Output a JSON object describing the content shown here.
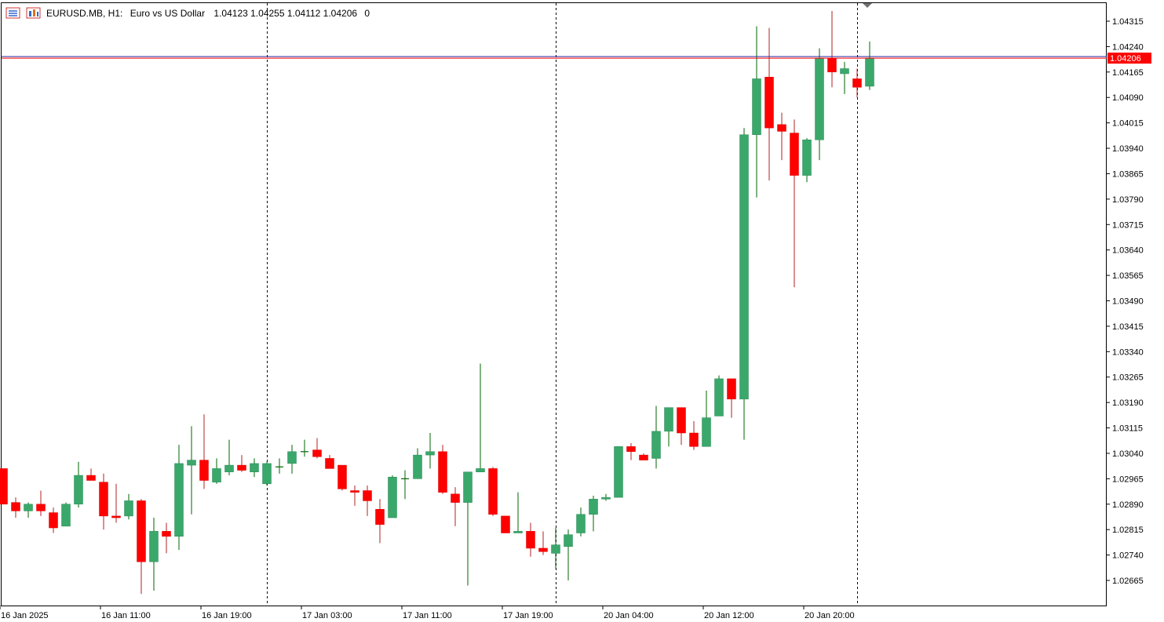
{
  "header": {
    "symbol_timeframe": "EURUSD.MB, H1:",
    "description": "Euro vs US Dollar",
    "ohlc": "1.04123 1.04255 1.04112 1.04206",
    "volume": "0"
  },
  "icons": [
    "chart-window-icon",
    "indicators-icon"
  ],
  "colors": {
    "bull": "#3aa86b",
    "bear": "#ff0000",
    "wick_bull": "#006400",
    "wick_bear": "#b22222",
    "ask_line": "#ff0000",
    "bid_line": "#2a2aa0",
    "price_tag_bg": "#ff0000",
    "separator": "#000000",
    "frame": "#000000"
  },
  "chart_data": {
    "type": "candlestick",
    "symbol": "EURUSD.MB",
    "timeframe": "H1",
    "current_price": 1.04206,
    "price_tag_label": "1.04206",
    "price_axis": {
      "labels": [
        "1.04315",
        "1.04240",
        "1.04165",
        "1.04090",
        "1.04015",
        "1.03940",
        "1.03865",
        "1.03790",
        "1.03715",
        "1.03640",
        "1.03565",
        "1.03490",
        "1.03415",
        "1.03340",
        "1.03265",
        "1.03190",
        "1.03115",
        "1.03040",
        "1.02965",
        "1.02890",
        "1.02815",
        "1.02740",
        "1.02665"
      ]
    },
    "time_axis": {
      "labels": [
        "16 Jan 2025",
        "16 Jan 11:00",
        "16 Jan 19:00",
        "17 Jan 03:00",
        "17 Jan 11:00",
        "17 Jan 19:00",
        "20 Jan 04:00",
        "20 Jan 12:00",
        "20 Jan 20:00"
      ],
      "label_bar_index": [
        0,
        8,
        16,
        24,
        32,
        40,
        48,
        56,
        64
      ]
    },
    "period_separators_bar_index": [
      21,
      44,
      68
    ],
    "candles": [
      {
        "o": 1.02995,
        "h": 1.02995,
        "l": 1.0289,
        "c": 1.0289
      },
      {
        "o": 1.02895,
        "h": 1.0291,
        "l": 1.0285,
        "c": 1.0287
      },
      {
        "o": 1.0287,
        "h": 1.02895,
        "l": 1.0285,
        "c": 1.0289
      },
      {
        "o": 1.0289,
        "h": 1.0293,
        "l": 1.02855,
        "c": 1.0287
      },
      {
        "o": 1.02865,
        "h": 1.0288,
        "l": 1.02805,
        "c": 1.0282
      },
      {
        "o": 1.02825,
        "h": 1.02895,
        "l": 1.02825,
        "c": 1.0289
      },
      {
        "o": 1.0289,
        "h": 1.03015,
        "l": 1.0288,
        "c": 1.02975
      },
      {
        "o": 1.02975,
        "h": 1.02995,
        "l": 1.0296,
        "c": 1.0296
      },
      {
        "o": 1.02955,
        "h": 1.0298,
        "l": 1.02815,
        "c": 1.02855
      },
      {
        "o": 1.02855,
        "h": 1.0295,
        "l": 1.02835,
        "c": 1.0285
      },
      {
        "o": 1.02855,
        "h": 1.0292,
        "l": 1.02845,
        "c": 1.029
      },
      {
        "o": 1.029,
        "h": 1.02905,
        "l": 1.02625,
        "c": 1.0272
      },
      {
        "o": 1.0272,
        "h": 1.0285,
        "l": 1.02635,
        "c": 1.0281
      },
      {
        "o": 1.0281,
        "h": 1.02835,
        "l": 1.02745,
        "c": 1.02795
      },
      {
        "o": 1.02795,
        "h": 1.03065,
        "l": 1.02755,
        "c": 1.0301
      },
      {
        "o": 1.03005,
        "h": 1.0312,
        "l": 1.0286,
        "c": 1.0302
      },
      {
        "o": 1.0302,
        "h": 1.03155,
        "l": 1.02935,
        "c": 1.0296
      },
      {
        "o": 1.02955,
        "h": 1.03025,
        "l": 1.0295,
        "c": 1.02995
      },
      {
        "o": 1.02985,
        "h": 1.0308,
        "l": 1.02975,
        "c": 1.03005
      },
      {
        "o": 1.03005,
        "h": 1.03035,
        "l": 1.02985,
        "c": 1.0299
      },
      {
        "o": 1.02985,
        "h": 1.03025,
        "l": 1.0297,
        "c": 1.0301
      },
      {
        "o": 1.0295,
        "h": 1.03015,
        "l": 1.02945,
        "c": 1.0301
      },
      {
        "o": 1.03,
        "h": 1.03025,
        "l": 1.0298,
        "c": 1.03
      },
      {
        "o": 1.0301,
        "h": 1.03065,
        "l": 1.0298,
        "c": 1.03045
      },
      {
        "o": 1.03045,
        "h": 1.0308,
        "l": 1.0303,
        "c": 1.03045
      },
      {
        "o": 1.0305,
        "h": 1.03085,
        "l": 1.03025,
        "c": 1.0303
      },
      {
        "o": 1.03025,
        "h": 1.03035,
        "l": 1.02995,
        "c": 1.02995
      },
      {
        "o": 1.03005,
        "h": 1.03005,
        "l": 1.0293,
        "c": 1.02935
      },
      {
        "o": 1.0293,
        "h": 1.02945,
        "l": 1.02885,
        "c": 1.02925
      },
      {
        "o": 1.0293,
        "h": 1.02945,
        "l": 1.02855,
        "c": 1.029
      },
      {
        "o": 1.02875,
        "h": 1.02905,
        "l": 1.02775,
        "c": 1.0283
      },
      {
        "o": 1.0285,
        "h": 1.02975,
        "l": 1.0285,
        "c": 1.0297
      },
      {
        "o": 1.02965,
        "h": 1.0299,
        "l": 1.02905,
        "c": 1.02965
      },
      {
        "o": 1.02965,
        "h": 1.03055,
        "l": 1.02965,
        "c": 1.03035
      },
      {
        "o": 1.03035,
        "h": 1.031,
        "l": 1.02995,
        "c": 1.03045
      },
      {
        "o": 1.03045,
        "h": 1.03065,
        "l": 1.0292,
        "c": 1.02925
      },
      {
        "o": 1.0292,
        "h": 1.0294,
        "l": 1.02825,
        "c": 1.02895
      },
      {
        "o": 1.02895,
        "h": 1.02985,
        "l": 1.0265,
        "c": 1.02985
      },
      {
        "o": 1.02985,
        "h": 1.03305,
        "l": 1.02985,
        "c": 1.02995
      },
      {
        "o": 1.02995,
        "h": 1.03,
        "l": 1.02855,
        "c": 1.0286
      },
      {
        "o": 1.02855,
        "h": 1.02855,
        "l": 1.02805,
        "c": 1.02805
      },
      {
        "o": 1.02805,
        "h": 1.02925,
        "l": 1.02805,
        "c": 1.0281
      },
      {
        "o": 1.0281,
        "h": 1.02835,
        "l": 1.02735,
        "c": 1.0276
      },
      {
        "o": 1.0276,
        "h": 1.0281,
        "l": 1.0274,
        "c": 1.0275
      },
      {
        "o": 1.02745,
        "h": 1.0282,
        "l": 1.027,
        "c": 1.0277
      },
      {
        "o": 1.02765,
        "h": 1.02815,
        "l": 1.02665,
        "c": 1.028
      },
      {
        "o": 1.02805,
        "h": 1.0288,
        "l": 1.02795,
        "c": 1.0286
      },
      {
        "o": 1.0286,
        "h": 1.02915,
        "l": 1.0281,
        "c": 1.02905
      },
      {
        "o": 1.02905,
        "h": 1.0292,
        "l": 1.029,
        "c": 1.0291
      },
      {
        "o": 1.0291,
        "h": 1.0306,
        "l": 1.0291,
        "c": 1.0306
      },
      {
        "o": 1.0306,
        "h": 1.0307,
        "l": 1.0302,
        "c": 1.03045
      },
      {
        "o": 1.03035,
        "h": 1.0304,
        "l": 1.0302,
        "c": 1.0302
      },
      {
        "o": 1.03025,
        "h": 1.0318,
        "l": 1.02995,
        "c": 1.03105
      },
      {
        "o": 1.03105,
        "h": 1.03165,
        "l": 1.0306,
        "c": 1.03175
      },
      {
        "o": 1.03175,
        "h": 1.03175,
        "l": 1.03065,
        "c": 1.031
      },
      {
        "o": 1.031,
        "h": 1.03135,
        "l": 1.0305,
        "c": 1.0306
      },
      {
        "o": 1.0306,
        "h": 1.03225,
        "l": 1.0306,
        "c": 1.03145
      },
      {
        "o": 1.0315,
        "h": 1.0327,
        "l": 1.0315,
        "c": 1.0326
      },
      {
        "o": 1.0326,
        "h": 1.0326,
        "l": 1.03145,
        "c": 1.032
      },
      {
        "o": 1.032,
        "h": 1.04,
        "l": 1.0308,
        "c": 1.0398
      },
      {
        "o": 1.0398,
        "h": 1.043,
        "l": 1.03795,
        "c": 1.04145
      },
      {
        "o": 1.0415,
        "h": 1.04295,
        "l": 1.03845,
        "c": 1.04
      },
      {
        "o": 1.0401,
        "h": 1.04045,
        "l": 1.03905,
        "c": 1.0399
      },
      {
        "o": 1.03985,
        "h": 1.04025,
        "l": 1.0353,
        "c": 1.0386
      },
      {
        "o": 1.0386,
        "h": 1.0397,
        "l": 1.0384,
        "c": 1.03965
      },
      {
        "o": 1.03965,
        "h": 1.04235,
        "l": 1.03905,
        "c": 1.04205
      },
      {
        "o": 1.04205,
        "h": 1.04345,
        "l": 1.0412,
        "c": 1.04165
      },
      {
        "o": 1.0416,
        "h": 1.04195,
        "l": 1.041,
        "c": 1.04175
      },
      {
        "o": 1.04145,
        "h": 1.04175,
        "l": 1.0409,
        "c": 1.0412
      },
      {
        "o": 1.04123,
        "h": 1.04255,
        "l": 1.04112,
        "c": 1.04206
      }
    ]
  }
}
